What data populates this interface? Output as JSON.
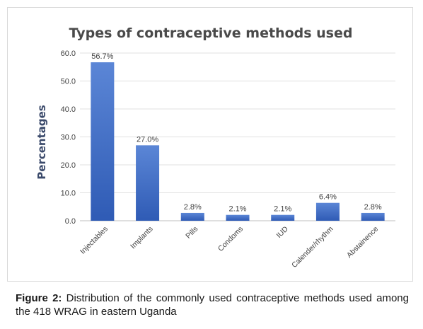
{
  "chart_data": {
    "type": "bar",
    "title": "Types of contraceptive methods used",
    "ylabel": "Percentages",
    "xlabel": "",
    "categories": [
      "Injectables",
      "Implants",
      "Pills",
      "Condoms",
      "IUD",
      "Calender/rhythm",
      "Abstainence"
    ],
    "values": [
      56.7,
      27.0,
      2.8,
      2.1,
      2.1,
      6.4,
      2.8
    ],
    "data_labels": [
      "56.7%",
      "27.0%",
      "2.8%",
      "2.1%",
      "2.1%",
      "6.4%",
      "2.8%"
    ],
    "yticks": [
      "0.0",
      "10.0",
      "20.0",
      "30.0",
      "40.0",
      "50.0",
      "60.0"
    ],
    "ylim": [
      0,
      60
    ],
    "grid": true,
    "bar_color": "#4472c4"
  },
  "caption": {
    "label": "Figure 2:",
    "text": " Distribution of the commonly used contraceptive methods used among the 418 WRAG in eastern Uganda"
  }
}
